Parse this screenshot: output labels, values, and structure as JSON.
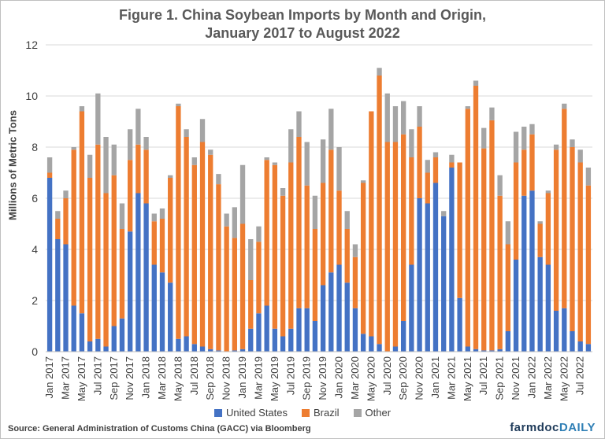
{
  "title_line1": "Figure 1. China Soybean Imports by Month and Origin,",
  "title_line2": "January 2017 to August 2022",
  "source": "Source: General Administration of Customs China (GACC) via Bloomberg",
  "brand": {
    "part1": "farmdoc",
    "part2": "DAILY"
  },
  "colors": {
    "us": "#4472c4",
    "brazil": "#ed7d31",
    "other": "#a5a5a5",
    "grid": "#d9d9d9",
    "text": "#404040"
  },
  "chart_data": {
    "type": "bar",
    "stacked": true,
    "title": "Figure 1. China Soybean Imports by Month and Origin, January 2017 to August 2022",
    "xlabel": "",
    "ylabel": "Millions of Metric Tons",
    "ylim": [
      0,
      12
    ],
    "yticks": [
      0,
      2,
      4,
      6,
      8,
      10,
      12
    ],
    "grid": true,
    "legend_position": "bottom",
    "categories": [
      "Jan 2017",
      "Feb 2017",
      "Mar 2017",
      "Apr 2017",
      "May 2017",
      "Jun 2017",
      "Jul 2017",
      "Aug 2017",
      "Sep 2017",
      "Oct 2017",
      "Nov 2017",
      "Dec 2017",
      "Jan 2018",
      "Feb 2018",
      "Mar 2018",
      "Apr 2018",
      "May 2018",
      "Jun 2018",
      "Jul 2018",
      "Aug 2018",
      "Sep 2018",
      "Oct 2018",
      "Nov 2018",
      "Dec 2018",
      "Jan 2019",
      "Feb 2019",
      "Mar 2019",
      "Apr 2019",
      "May 2019",
      "Jun 2019",
      "Jul 2019",
      "Aug 2019",
      "Sep 2019",
      "Oct 2019",
      "Nov 2019",
      "Dec 2019",
      "Jan 2020",
      "Feb 2020",
      "Mar 2020",
      "Apr 2020",
      "May 2020",
      "Jun 2020",
      "Jul 2020",
      "Aug 2020",
      "Sep 2020",
      "Oct 2020",
      "Nov 2020",
      "Dec 2020",
      "Jan 2021",
      "Feb 2021",
      "Mar 2021",
      "Apr 2021",
      "May 2021",
      "Jun 2021",
      "Jul 2021",
      "Aug 2021",
      "Sep 2021",
      "Oct 2021",
      "Nov 2021",
      "Dec 2021",
      "Jan 2022",
      "Feb 2022",
      "Mar 2022",
      "Apr 2022",
      "May 2022",
      "Jun 2022",
      "Jul 2022",
      "Aug 2022"
    ],
    "tick_labels": [
      "Jan 2017",
      "Mar 2017",
      "May 2017",
      "Jul 2017",
      "Sep 2017",
      "Nov 2017",
      "Jan 2018",
      "Mar 2018",
      "May 2018",
      "Jul 2018",
      "Sep 2018",
      "Nov 2018",
      "Jan 2019",
      "Mar 2019",
      "May 2019",
      "Jul 2019",
      "Sep 2019",
      "Nov 2019",
      "Jan 2020",
      "Mar 2020",
      "May 2020",
      "Jul 2020",
      "Sep 2020",
      "Nov 2020",
      "Jan 2021",
      "Mar 2021",
      "May 2021",
      "Jul 2021",
      "Sep 2021",
      "Nov 2021",
      "Jan 2022",
      "Mar 2022",
      "May 2022",
      "Jul 2022"
    ],
    "series": [
      {
        "name": "United States",
        "values": [
          6.8,
          4.4,
          4.2,
          1.8,
          1.5,
          0.4,
          0.5,
          0.2,
          1.0,
          1.3,
          4.7,
          6.2,
          5.8,
          3.4,
          3.1,
          2.7,
          0.5,
          0.6,
          0.3,
          0.2,
          0.1,
          0.05,
          0.0,
          0.05,
          0.1,
          0.9,
          1.5,
          1.8,
          0.9,
          0.6,
          0.9,
          1.7,
          1.7,
          1.2,
          2.6,
          3.1,
          3.4,
          2.7,
          1.7,
          0.7,
          0.6,
          0.3,
          0.0,
          0.2,
          1.2,
          3.4,
          6.0,
          5.8,
          6.6,
          5.3,
          7.2,
          2.1,
          0.2,
          0.1,
          0.05,
          0.05,
          0.1,
          0.8,
          3.6,
          6.1,
          6.3,
          3.7,
          3.4,
          1.6,
          1.7,
          0.8,
          0.4,
          0.3
        ]
      },
      {
        "name": "Brazil",
        "values": [
          0.2,
          0.8,
          1.8,
          6.1,
          7.9,
          6.4,
          7.6,
          6.0,
          5.9,
          3.5,
          2.8,
          1.9,
          2.1,
          1.7,
          2.1,
          4.1,
          9.1,
          7.8,
          7.0,
          8.0,
          7.6,
          6.5,
          4.9,
          4.4,
          4.9,
          1.9,
          2.8,
          5.7,
          6.4,
          5.5,
          6.5,
          6.7,
          4.8,
          3.6,
          4.0,
          4.8,
          2.9,
          2.1,
          2.0,
          5.9,
          8.8,
          10.5,
          8.2,
          8.0,
          7.3,
          4.2,
          2.8,
          1.2,
          1.0,
          0.0,
          0.2,
          5.3,
          9.3,
          10.3,
          7.9,
          9.0,
          6.0,
          3.4,
          3.8,
          1.8,
          2.2,
          1.3,
          2.8,
          6.3,
          7.8,
          7.2,
          7.0,
          6.2
        ]
      },
      {
        "name": "Other",
        "values": [
          0.6,
          0.3,
          0.3,
          0.1,
          0.2,
          0.9,
          2.0,
          2.2,
          1.2,
          1.0,
          1.2,
          1.4,
          0.5,
          0.3,
          0.4,
          0.1,
          0.1,
          0.3,
          0.3,
          0.9,
          0.2,
          0.4,
          0.5,
          1.2,
          2.3,
          1.6,
          0.6,
          0.1,
          0.1,
          0.3,
          1.3,
          1.0,
          1.7,
          1.3,
          1.7,
          1.6,
          1.7,
          0.7,
          0.5,
          0.1,
          0.0,
          0.3,
          1.9,
          1.4,
          1.3,
          1.1,
          0.8,
          0.5,
          0.2,
          0.2,
          0.3,
          0.0,
          0.1,
          0.2,
          0.8,
          0.5,
          0.8,
          0.9,
          1.2,
          0.9,
          0.4,
          0.1,
          0.1,
          0.2,
          0.2,
          0.3,
          0.5,
          0.7
        ]
      }
    ]
  }
}
